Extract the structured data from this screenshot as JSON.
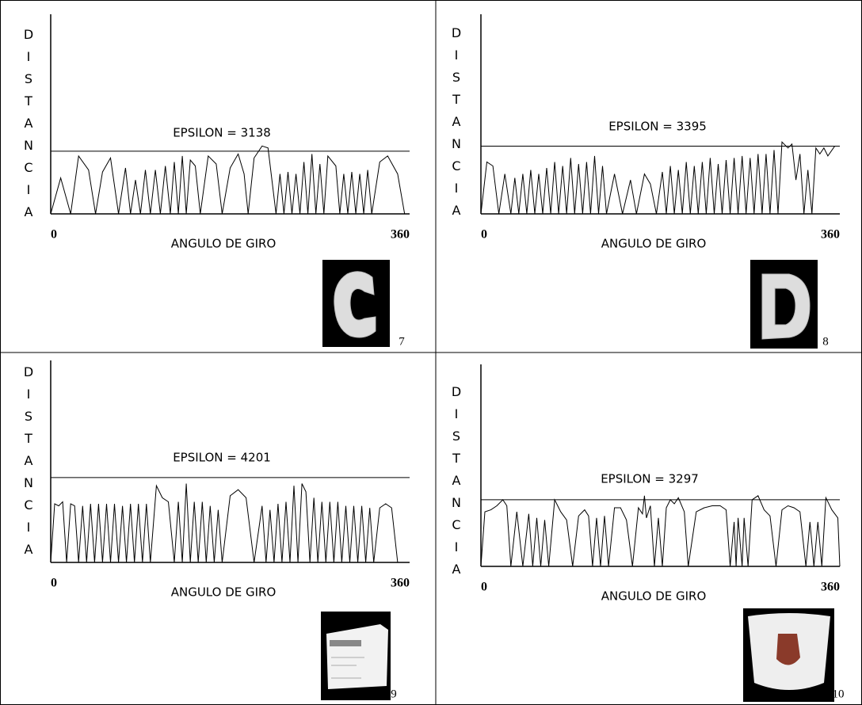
{
  "chart_data": [
    {
      "type": "line",
      "ylabel": "DISTANCIA",
      "xlabel": "ANGULO DE GIRO",
      "annotation": "EPSILON = 3138",
      "threshold": 3138,
      "figure_number": "7",
      "xlim": [
        0,
        360
      ],
      "xticks": [
        0,
        360
      ],
      "ylim": [
        0,
        10000
      ],
      "color": "#000000",
      "x": [
        0,
        10,
        20,
        28,
        38,
        45,
        52,
        60,
        68,
        75,
        80,
        85,
        90,
        95,
        100,
        105,
        110,
        115,
        120,
        124,
        128,
        132,
        136,
        140,
        145,
        150,
        158,
        166,
        172,
        180,
        188,
        194,
        198,
        204,
        212,
        218,
        226,
        230,
        234,
        238,
        242,
        246,
        250,
        254,
        258,
        262,
        266,
        270,
        274,
        278,
        286,
        290,
        294,
        298,
        302,
        306,
        310,
        314,
        318,
        322,
        330,
        338,
        348,
        355
      ],
      "values": [
        0,
        1800,
        0,
        2900,
        2200,
        0,
        2100,
        2800,
        0,
        2300,
        0,
        1700,
        0,
        2200,
        0,
        2200,
        0,
        2400,
        0,
        2600,
        0,
        2900,
        0,
        2700,
        2400,
        0,
        2900,
        2500,
        0,
        2300,
        3000,
        2000,
        0,
        2800,
        3400,
        3300,
        0,
        2000,
        0,
        2100,
        0,
        2000,
        0,
        2600,
        0,
        3000,
        0,
        2500,
        0,
        2900,
        2400,
        0,
        2000,
        0,
        2100,
        0,
        2000,
        0,
        2200,
        0,
        2600,
        2900,
        2000,
        0
      ]
    },
    {
      "type": "line",
      "ylabel": "DISTANCIA",
      "xlabel": "ANGULO DE GIRO",
      "annotation": "EPSILON = 3395",
      "threshold": 3395,
      "figure_number": "8",
      "xlim": [
        0,
        360
      ],
      "xticks": [
        0,
        360
      ],
      "ylim": [
        0,
        10000
      ],
      "color": "#000000",
      "x": [
        0,
        6,
        12,
        18,
        24,
        30,
        34,
        38,
        42,
        46,
        50,
        54,
        58,
        62,
        66,
        70,
        74,
        78,
        82,
        86,
        90,
        94,
        98,
        102,
        106,
        110,
        114,
        118,
        122,
        126,
        134,
        142,
        150,
        156,
        164,
        170,
        176,
        182,
        186,
        190,
        194,
        198,
        202,
        206,
        210,
        214,
        218,
        222,
        226,
        230,
        234,
        238,
        242,
        246,
        250,
        254,
        258,
        262,
        266,
        270,
        274,
        278,
        282,
        286,
        290,
        294,
        298,
        302,
        308,
        312,
        316,
        320,
        324,
        328,
        332,
        336,
        340,
        344,
        348,
        355
      ],
      "values": [
        0,
        2600,
        2400,
        0,
        2000,
        0,
        1800,
        0,
        2000,
        0,
        2200,
        0,
        2000,
        0,
        2300,
        0,
        2600,
        0,
        2400,
        0,
        2800,
        0,
        2500,
        0,
        2600,
        0,
        2900,
        0,
        2400,
        0,
        2000,
        0,
        1700,
        0,
        2000,
        1500,
        0,
        2100,
        0,
        2400,
        0,
        2200,
        0,
        2600,
        0,
        2400,
        0,
        2600,
        0,
        2800,
        0,
        2500,
        0,
        2700,
        0,
        2800,
        0,
        2900,
        0,
        2800,
        0,
        3000,
        0,
        3000,
        0,
        3200,
        0,
        3600,
        3300,
        3500,
        1700,
        3000,
        0,
        2200,
        0,
        3300,
        3000,
        3300,
        2900,
        3400
      ]
    },
    {
      "type": "line",
      "ylabel": "DISTANCIA",
      "xlabel": "ANGULO DE GIRO",
      "annotation": "EPSILON = 4201",
      "threshold": 4201,
      "figure_number": "9",
      "xlim": [
        0,
        360
      ],
      "xticks": [
        0,
        360
      ],
      "ylim": [
        0,
        10000
      ],
      "color": "#000000",
      "x": [
        0,
        4,
        8,
        12,
        16,
        20,
        24,
        28,
        32,
        36,
        40,
        44,
        48,
        52,
        56,
        60,
        64,
        68,
        72,
        76,
        80,
        84,
        88,
        92,
        96,
        100,
        106,
        112,
        118,
        124,
        128,
        132,
        136,
        140,
        144,
        148,
        152,
        156,
        160,
        164,
        168,
        172,
        180,
        188,
        196,
        204,
        212,
        216,
        220,
        224,
        228,
        232,
        236,
        240,
        244,
        248,
        252,
        256,
        260,
        264,
        268,
        272,
        276,
        280,
        284,
        288,
        292,
        296,
        300,
        304,
        308,
        312,
        316,
        320,
        324,
        330,
        336,
        342,
        348
      ],
      "values": [
        0,
        2900,
        2800,
        3000,
        0,
        2900,
        2800,
        0,
        2800,
        0,
        2900,
        0,
        2900,
        0,
        2900,
        0,
        2900,
        0,
        2800,
        0,
        2900,
        0,
        2900,
        0,
        2900,
        0,
        3800,
        3200,
        3000,
        0,
        3000,
        0,
        3900,
        0,
        3000,
        0,
        3000,
        0,
        2800,
        0,
        2600,
        0,
        3300,
        3600,
        3200,
        0,
        2800,
        0,
        2600,
        0,
        2900,
        0,
        3000,
        0,
        3800,
        0,
        3900,
        3500,
        0,
        3200,
        0,
        3000,
        0,
        3000,
        0,
        3000,
        0,
        2800,
        0,
        2800,
        0,
        2800,
        0,
        2700,
        0,
        2700,
        2900,
        2700,
        0
      ]
    },
    {
      "type": "line",
      "ylabel": "DISTANCIA",
      "xlabel": "ANGULO DE GIRO",
      "annotation": "EPSILON = 3297",
      "threshold": 3297,
      "figure_number": "10",
      "xlim": [
        0,
        360
      ],
      "xticks": [
        0,
        360
      ],
      "ylim": [
        0,
        10000
      ],
      "color": "#000000",
      "x": [
        0,
        4,
        10,
        16,
        22,
        26,
        30,
        36,
        42,
        48,
        52,
        56,
        60,
        64,
        68,
        74,
        80,
        86,
        92,
        98,
        104,
        108,
        112,
        116,
        120,
        124,
        128,
        134,
        140,
        146,
        152,
        158,
        162,
        164,
        166,
        170,
        174,
        178,
        182,
        186,
        190,
        194,
        198,
        204,
        208,
        216,
        224,
        232,
        240,
        246,
        250,
        254,
        256,
        258,
        262,
        264,
        268,
        272,
        278,
        284,
        290,
        296,
        302,
        308,
        314,
        320,
        326,
        330,
        334,
        338,
        342,
        346,
        352,
        358,
        360
      ],
      "values": [
        0,
        2700,
        2800,
        3000,
        3300,
        3000,
        0,
        2700,
        0,
        2600,
        0,
        2400,
        0,
        2300,
        0,
        3300,
        2700,
        2300,
        0,
        2500,
        2800,
        2500,
        0,
        2400,
        0,
        2500,
        0,
        2900,
        2900,
        2300,
        0,
        2900,
        2600,
        3500,
        2400,
        3000,
        0,
        2400,
        0,
        2900,
        3300,
        3100,
        3400,
        2700,
        0,
        2700,
        2900,
        3000,
        3000,
        2800,
        0,
        2200,
        0,
        2400,
        0,
        2400,
        0,
        3300,
        3500,
        2800,
        2500,
        0,
        2800,
        3000,
        2900,
        2700,
        0,
        2200,
        0,
        2200,
        0,
        3400,
        2800,
        2400,
        0
      ]
    }
  ]
}
